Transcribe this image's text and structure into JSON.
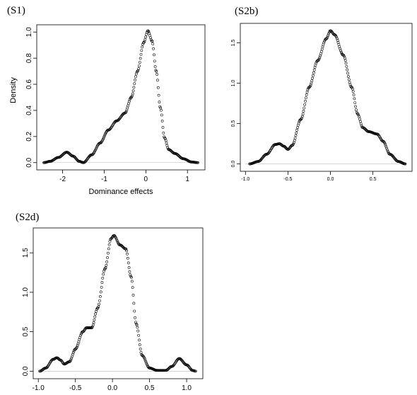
{
  "panels": [
    {
      "label": "(S1)"
    },
    {
      "label": "(S2b)"
    },
    {
      "label": "(S2d)"
    }
  ],
  "chart_data": [
    {
      "type": "scatter",
      "panel": "(S1)",
      "xlabel": "Dominance effects",
      "ylabel": "Density",
      "xlim": [
        -2.5,
        1.3
      ],
      "ylim": [
        0,
        1.0
      ],
      "xticks": [
        -2,
        -1,
        0,
        1
      ],
      "xtick_labels": [
        "-2",
        "-1",
        "0",
        "1"
      ],
      "yticks": [
        0.0,
        0.2,
        0.4,
        0.6,
        0.8,
        1.0
      ],
      "ytick_labels": [
        "0.0",
        "0.2",
        "0.4",
        "0.6",
        "0.8",
        "1.0"
      ],
      "grid": false,
      "curve": [
        [
          -2.45,
          0.0
        ],
        [
          -2.3,
          0.01
        ],
        [
          -2.1,
          0.04
        ],
        [
          -1.9,
          0.08
        ],
        [
          -1.75,
          0.05
        ],
        [
          -1.6,
          0.01
        ],
        [
          -1.5,
          0.0
        ],
        [
          -1.3,
          0.06
        ],
        [
          -1.1,
          0.15
        ],
        [
          -0.9,
          0.25
        ],
        [
          -0.7,
          0.32
        ],
        [
          -0.5,
          0.38
        ],
        [
          -0.35,
          0.5
        ],
        [
          -0.2,
          0.7
        ],
        [
          -0.05,
          0.92
        ],
        [
          0.05,
          1.01
        ],
        [
          0.15,
          0.93
        ],
        [
          0.25,
          0.7
        ],
        [
          0.35,
          0.42
        ],
        [
          0.45,
          0.19
        ],
        [
          0.55,
          0.1
        ],
        [
          0.7,
          0.07
        ],
        [
          0.9,
          0.03
        ],
        [
          1.1,
          0.005
        ],
        [
          1.25,
          0.0
        ]
      ]
    },
    {
      "type": "scatter",
      "panel": "(S2b)",
      "xlabel": "",
      "ylabel": "",
      "xlim": [
        -1.0,
        0.9
      ],
      "ylim": [
        0,
        1.65
      ],
      "xticks": [
        -1.0,
        -0.5,
        0.0,
        0.5
      ],
      "xtick_labels": [
        "-1.0",
        "-0.5",
        "0.0",
        "0.5"
      ],
      "yticks": [
        0.0,
        0.5,
        1.0,
        1.5
      ],
      "ytick_labels": [
        "0.0",
        "0.5",
        "1.0",
        "1.5"
      ],
      "grid": false,
      "curve": [
        [
          -0.95,
          0.0
        ],
        [
          -0.85,
          0.03
        ],
        [
          -0.75,
          0.12
        ],
        [
          -0.65,
          0.24
        ],
        [
          -0.6,
          0.25
        ],
        [
          -0.55,
          0.22
        ],
        [
          -0.5,
          0.18
        ],
        [
          -0.45,
          0.23
        ],
        [
          -0.35,
          0.55
        ],
        [
          -0.25,
          0.95
        ],
        [
          -0.15,
          1.28
        ],
        [
          -0.05,
          1.55
        ],
        [
          0.0,
          1.65
        ],
        [
          0.05,
          1.6
        ],
        [
          0.15,
          1.35
        ],
        [
          0.25,
          0.95
        ],
        [
          0.32,
          0.62
        ],
        [
          0.38,
          0.45
        ],
        [
          0.45,
          0.4
        ],
        [
          0.55,
          0.37
        ],
        [
          0.62,
          0.28
        ],
        [
          0.7,
          0.12
        ],
        [
          0.8,
          0.03
        ],
        [
          0.88,
          0.0
        ]
      ]
    },
    {
      "type": "scatter",
      "panel": "(S2d)",
      "xlabel": "",
      "ylabel": "",
      "xlim": [
        -1.0,
        1.15
      ],
      "ylim": [
        0,
        1.72
      ],
      "xticks": [
        -1.0,
        -0.5,
        0.0,
        0.5,
        1.0
      ],
      "xtick_labels": [
        "-1.0",
        "-0.5",
        "0.0",
        "0.5",
        "1.0"
      ],
      "yticks": [
        0.0,
        0.5,
        1.0,
        1.5
      ],
      "ytick_labels": [
        "0.0",
        "0.5",
        "1.0",
        "1.5"
      ],
      "grid": false,
      "curve": [
        [
          -0.98,
          0.0
        ],
        [
          -0.9,
          0.04
        ],
        [
          -0.8,
          0.15
        ],
        [
          -0.75,
          0.17
        ],
        [
          -0.7,
          0.14
        ],
        [
          -0.65,
          0.09
        ],
        [
          -0.58,
          0.12
        ],
        [
          -0.5,
          0.28
        ],
        [
          -0.4,
          0.5
        ],
        [
          -0.35,
          0.55
        ],
        [
          -0.28,
          0.55
        ],
        [
          -0.2,
          0.8
        ],
        [
          -0.1,
          1.3
        ],
        [
          -0.02,
          1.68
        ],
        [
          0.02,
          1.72
        ],
        [
          0.1,
          1.6
        ],
        [
          0.18,
          1.55
        ],
        [
          0.25,
          1.2
        ],
        [
          0.32,
          0.6
        ],
        [
          0.4,
          0.2
        ],
        [
          0.5,
          0.04
        ],
        [
          0.6,
          0.01
        ],
        [
          0.72,
          0.01
        ],
        [
          0.8,
          0.06
        ],
        [
          0.9,
          0.16
        ],
        [
          1.0,
          0.08
        ],
        [
          1.08,
          0.01
        ],
        [
          1.12,
          0.0
        ]
      ]
    }
  ]
}
